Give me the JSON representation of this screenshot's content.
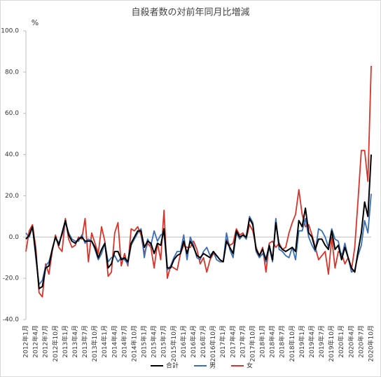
{
  "chart_data": {
    "type": "line",
    "title": "自殺者数の対前年同月比増減",
    "ylabel": "%",
    "ylim": [
      -40,
      100
    ],
    "yticks": [
      {
        "value": -40,
        "label": "-40.0"
      },
      {
        "value": -20,
        "label": "-20.0"
      },
      {
        "value": 0,
        "label": "0.0"
      },
      {
        "value": 20,
        "label": "20.0"
      },
      {
        "value": 40,
        "label": "40.0"
      },
      {
        "value": 60,
        "label": "60.0"
      },
      {
        "value": 80,
        "label": "80.0"
      },
      {
        "value": 100,
        "label": "100.0"
      }
    ],
    "grid": false,
    "legend": "bottom",
    "categories": [
      "2012年1月",
      null,
      null,
      "2012年4月",
      null,
      null,
      "2012年7月",
      null,
      null,
      "2012年10月",
      null,
      null,
      "2013年1月",
      null,
      null,
      "2013年4月",
      null,
      null,
      "2013年7月",
      null,
      null,
      "2013年10月",
      null,
      null,
      "2014年1月",
      null,
      null,
      "2014年4月",
      null,
      null,
      "2014年7月",
      null,
      null,
      "2014年10月",
      null,
      null,
      "2015年1月",
      null,
      null,
      "2015年4月",
      null,
      null,
      "2015年7月",
      null,
      null,
      "2015年10月",
      null,
      null,
      "2016年1月",
      null,
      null,
      "2016年4月",
      null,
      null,
      "2016年7月",
      null,
      null,
      "2016年10月",
      null,
      null,
      "2017年1月",
      null,
      null,
      "2017年4月",
      null,
      null,
      "2017年7月",
      null,
      null,
      "2017年10月",
      null,
      null,
      "2018年1月",
      null,
      null,
      "2018年4月",
      null,
      null,
      "2018年7月",
      null,
      null,
      "2018年10月",
      null,
      null,
      "2019年1月",
      null,
      null,
      "2019年4月",
      null,
      null,
      "2019年7月",
      null,
      null,
      "2019年10月",
      null,
      null,
      "2020年1月",
      null,
      null,
      "2020年4月",
      null,
      null,
      "2020年7月",
      null,
      null,
      "2020年10月"
    ],
    "series": [
      {
        "name": "合計",
        "color": "#000000",
        "values": [
          -1,
          1,
          5,
          -8,
          -25,
          -24,
          -15,
          -14,
          -6,
          0,
          -4,
          2,
          8,
          1,
          -2,
          -3,
          -1,
          0,
          -2,
          -2,
          -2,
          -5,
          -10,
          -6,
          -3,
          -15,
          -13,
          -7,
          -7,
          -11,
          -10,
          -12,
          -3,
          0,
          3,
          3,
          -5,
          -2,
          -3,
          -8,
          -3,
          -4,
          4,
          -15,
          -15,
          -11,
          -9,
          -8,
          -2,
          -8,
          -2,
          -5,
          -9,
          -10,
          -8,
          -9,
          -10,
          -7,
          -9,
          -11,
          -12,
          -2,
          -5,
          -8,
          3,
          0,
          1,
          0,
          9,
          6,
          -6,
          -9,
          -6,
          -11,
          -4,
          -11,
          7,
          -4,
          -6,
          -7,
          -6,
          -5,
          -7,
          8,
          5,
          14,
          2,
          0,
          -6,
          -1,
          -1,
          -4,
          -6,
          3,
          -6,
          -4,
          -11,
          -5,
          -10,
          -15,
          -17,
          -7,
          2,
          17,
          10,
          40
        ]
      },
      {
        "name": "男",
        "color": "#3a6fb7",
        "values": [
          2,
          0,
          5,
          -10,
          -23,
          -21,
          -14,
          -12,
          -6,
          0,
          -3,
          1,
          7,
          2,
          -1,
          -2,
          -2,
          1,
          -3,
          -1,
          -2,
          -6,
          -11,
          -8,
          -3,
          -12,
          -10,
          -9,
          -12,
          -10,
          -11,
          -13,
          -4,
          -1,
          2,
          4,
          -10,
          -1,
          -4,
          3,
          -2,
          1,
          2,
          -16,
          -14,
          -10,
          -7,
          -7,
          1,
          -11,
          0,
          -4,
          -10,
          -11,
          -7,
          -5,
          -9,
          -7,
          -11,
          -12,
          -12,
          2,
          -6,
          -10,
          2,
          -1,
          1,
          -1,
          10,
          7,
          -7,
          -10,
          -8,
          -12,
          -5,
          -12,
          9,
          -6,
          -7,
          -9,
          -10,
          -5,
          -11,
          3,
          3,
          9,
          0,
          -4,
          -7,
          4,
          3,
          0,
          -5,
          4,
          -1,
          -2,
          -10,
          -3,
          -10,
          -17,
          -16,
          -9,
          -4,
          8,
          2,
          21
        ]
      },
      {
        "name": "女",
        "color": "#d9342b",
        "values": [
          -7,
          3,
          6,
          -5,
          -27,
          -29,
          -13,
          -18,
          -7,
          1,
          -5,
          -7,
          9,
          -1,
          -5,
          -4,
          0,
          -1,
          9,
          -12,
          2,
          -3,
          -8,
          5,
          -2,
          -19,
          -17,
          2,
          7,
          -14,
          -8,
          -14,
          4,
          3,
          5,
          1,
          -8,
          -3,
          -5,
          -15,
          -3,
          -11,
          13,
          -20,
          -14,
          -15,
          -16,
          -8,
          -4,
          -5,
          -5,
          -2,
          -6,
          -13,
          -10,
          -17,
          -11,
          -8,
          -9,
          -11,
          -12,
          -1,
          -4,
          -3,
          4,
          1,
          2,
          -1,
          6,
          3,
          -5,
          -9,
          -5,
          -17,
          -3,
          -2,
          -5,
          -3,
          -6,
          -5,
          2,
          7,
          11,
          23,
          11,
          5,
          6,
          1,
          -5,
          -11,
          -9,
          -7,
          -18,
          0,
          -15,
          -7,
          -8,
          -13,
          -10,
          -16,
          -5,
          18,
          42,
          42,
          27,
          83
        ]
      }
    ]
  }
}
